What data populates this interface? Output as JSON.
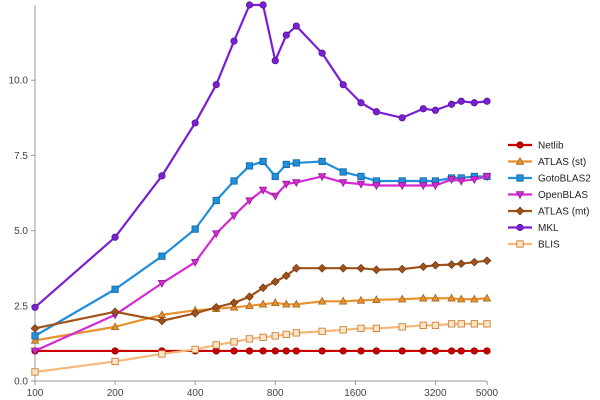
{
  "chart_data": {
    "type": "line",
    "title": "",
    "xlabel": "",
    "ylabel": "",
    "x_scale": "log",
    "x": [
      100,
      200,
      300,
      400,
      480,
      560,
      640,
      720,
      800,
      880,
      960,
      1200,
      1440,
      1680,
      1920,
      2400,
      2880,
      3200,
      3680,
      4000,
      4480,
      5000
    ],
    "x_tick_values": [
      100,
      200,
      400,
      800,
      1600,
      3200,
      5000
    ],
    "x_tick_labels": [
      "100",
      "200",
      "400",
      "800",
      "1600",
      "3200",
      "5000"
    ],
    "ylim": [
      0,
      12.5
    ],
    "y_ticks": [
      0,
      2.5,
      5,
      7.5,
      10
    ],
    "y_tick_labels": [
      "0.0",
      "2.5",
      "5.0",
      "7.5",
      "10.0"
    ],
    "legend_position": "right",
    "series": [
      {
        "name": "Netlib",
        "color": "#cc0000",
        "marker": "circle",
        "x": [
          100,
          200,
          300,
          400,
          480,
          560,
          640,
          720,
          800,
          880,
          960,
          1200,
          1440,
          1680,
          1920,
          2400,
          2880,
          3200,
          3680,
          4000,
          4480,
          5000
        ],
        "values": [
          1.0,
          1.0,
          1.0,
          1.0,
          1.0,
          1.0,
          1.0,
          1.0,
          1.0,
          1.0,
          1.0,
          1.0,
          1.0,
          1.0,
          1.0,
          1.0,
          1.0,
          1.0,
          1.0,
          1.0,
          1.0,
          1.0
        ]
      },
      {
        "name": "ATLAS (st)",
        "color": "#e8922e",
        "marker": "triangle-up",
        "x": [
          100,
          200,
          300,
          400,
          480,
          560,
          640,
          720,
          800,
          880,
          960,
          1200,
          1440,
          1680,
          1920,
          2400,
          2880,
          3200,
          3680,
          4000,
          4480,
          5000
        ],
        "values": [
          1.35,
          1.8,
          2.2,
          2.35,
          2.4,
          2.45,
          2.5,
          2.55,
          2.6,
          2.55,
          2.55,
          2.65,
          2.65,
          2.68,
          2.7,
          2.72,
          2.75,
          2.75,
          2.75,
          2.72,
          2.72,
          2.75
        ]
      },
      {
        "name": "GotoBLAS2",
        "color": "#1f8fdb",
        "marker": "square",
        "x": [
          100,
          200,
          300,
          400,
          480,
          560,
          640,
          720,
          800,
          880,
          960,
          1200,
          1440,
          1680,
          1920,
          2400,
          2880,
          3200,
          3680,
          4000,
          4480,
          5000
        ],
        "values": [
          1.5,
          3.05,
          4.15,
          5.05,
          6.0,
          6.65,
          7.15,
          7.3,
          6.8,
          7.2,
          7.25,
          7.3,
          6.95,
          6.8,
          6.65,
          6.65,
          6.65,
          6.65,
          6.75,
          6.75,
          6.8,
          6.8
        ]
      },
      {
        "name": "OpenBLAS",
        "color": "#d42ad4",
        "marker": "triangle-down",
        "x": [
          100,
          200,
          300,
          400,
          480,
          560,
          640,
          720,
          800,
          880,
          960,
          1200,
          1440,
          1680,
          1920,
          2400,
          2880,
          3200,
          3680,
          4000,
          4480,
          5000
        ],
        "values": [
          1.0,
          2.2,
          3.25,
          3.95,
          4.9,
          5.5,
          6.0,
          6.35,
          6.15,
          6.55,
          6.6,
          6.8,
          6.6,
          6.55,
          6.5,
          6.5,
          6.5,
          6.5,
          6.7,
          6.65,
          6.7,
          6.8
        ]
      },
      {
        "name": "ATLAS (mt)",
        "color": "#a0521a",
        "marker": "diamond",
        "x": [
          100,
          200,
          300,
          400,
          480,
          560,
          640,
          720,
          800,
          880,
          960,
          1200,
          1440,
          1680,
          1920,
          2400,
          2880,
          3200,
          3680,
          4000,
          4480,
          5000
        ],
        "values": [
          1.75,
          2.3,
          2.0,
          2.25,
          2.45,
          2.6,
          2.8,
          3.1,
          3.3,
          3.5,
          3.75,
          3.75,
          3.75,
          3.75,
          3.7,
          3.72,
          3.8,
          3.85,
          3.87,
          3.9,
          3.95,
          4.0
        ]
      },
      {
        "name": "MKL",
        "color": "#7a1fd4",
        "marker": "circle",
        "x": [
          100,
          200,
          300,
          400,
          480,
          560,
          640,
          720,
          800,
          880,
          960,
          1200,
          1440,
          1680,
          1920,
          2400,
          2880,
          3200,
          3680,
          4000,
          4480,
          5000
        ],
        "values": [
          2.45,
          4.78,
          6.82,
          8.58,
          9.85,
          11.3,
          12.5,
          12.55,
          10.65,
          11.5,
          11.8,
          10.9,
          9.85,
          9.25,
          8.95,
          8.75,
          9.05,
          9.0,
          9.2,
          9.3,
          9.25,
          9.3
        ]
      },
      {
        "name": "BLIS",
        "color": "#f5b87a",
        "marker": "square-open",
        "x": [
          100,
          200,
          300,
          400,
          480,
          560,
          640,
          720,
          800,
          880,
          960,
          1200,
          1440,
          1680,
          1920,
          2400,
          2880,
          3200,
          3680,
          4000,
          4480,
          5000
        ],
        "values": [
          0.3,
          0.65,
          0.9,
          1.05,
          1.2,
          1.3,
          1.4,
          1.45,
          1.5,
          1.55,
          1.6,
          1.65,
          1.7,
          1.75,
          1.75,
          1.8,
          1.85,
          1.85,
          1.9,
          1.9,
          1.9,
          1.9
        ]
      }
    ]
  }
}
